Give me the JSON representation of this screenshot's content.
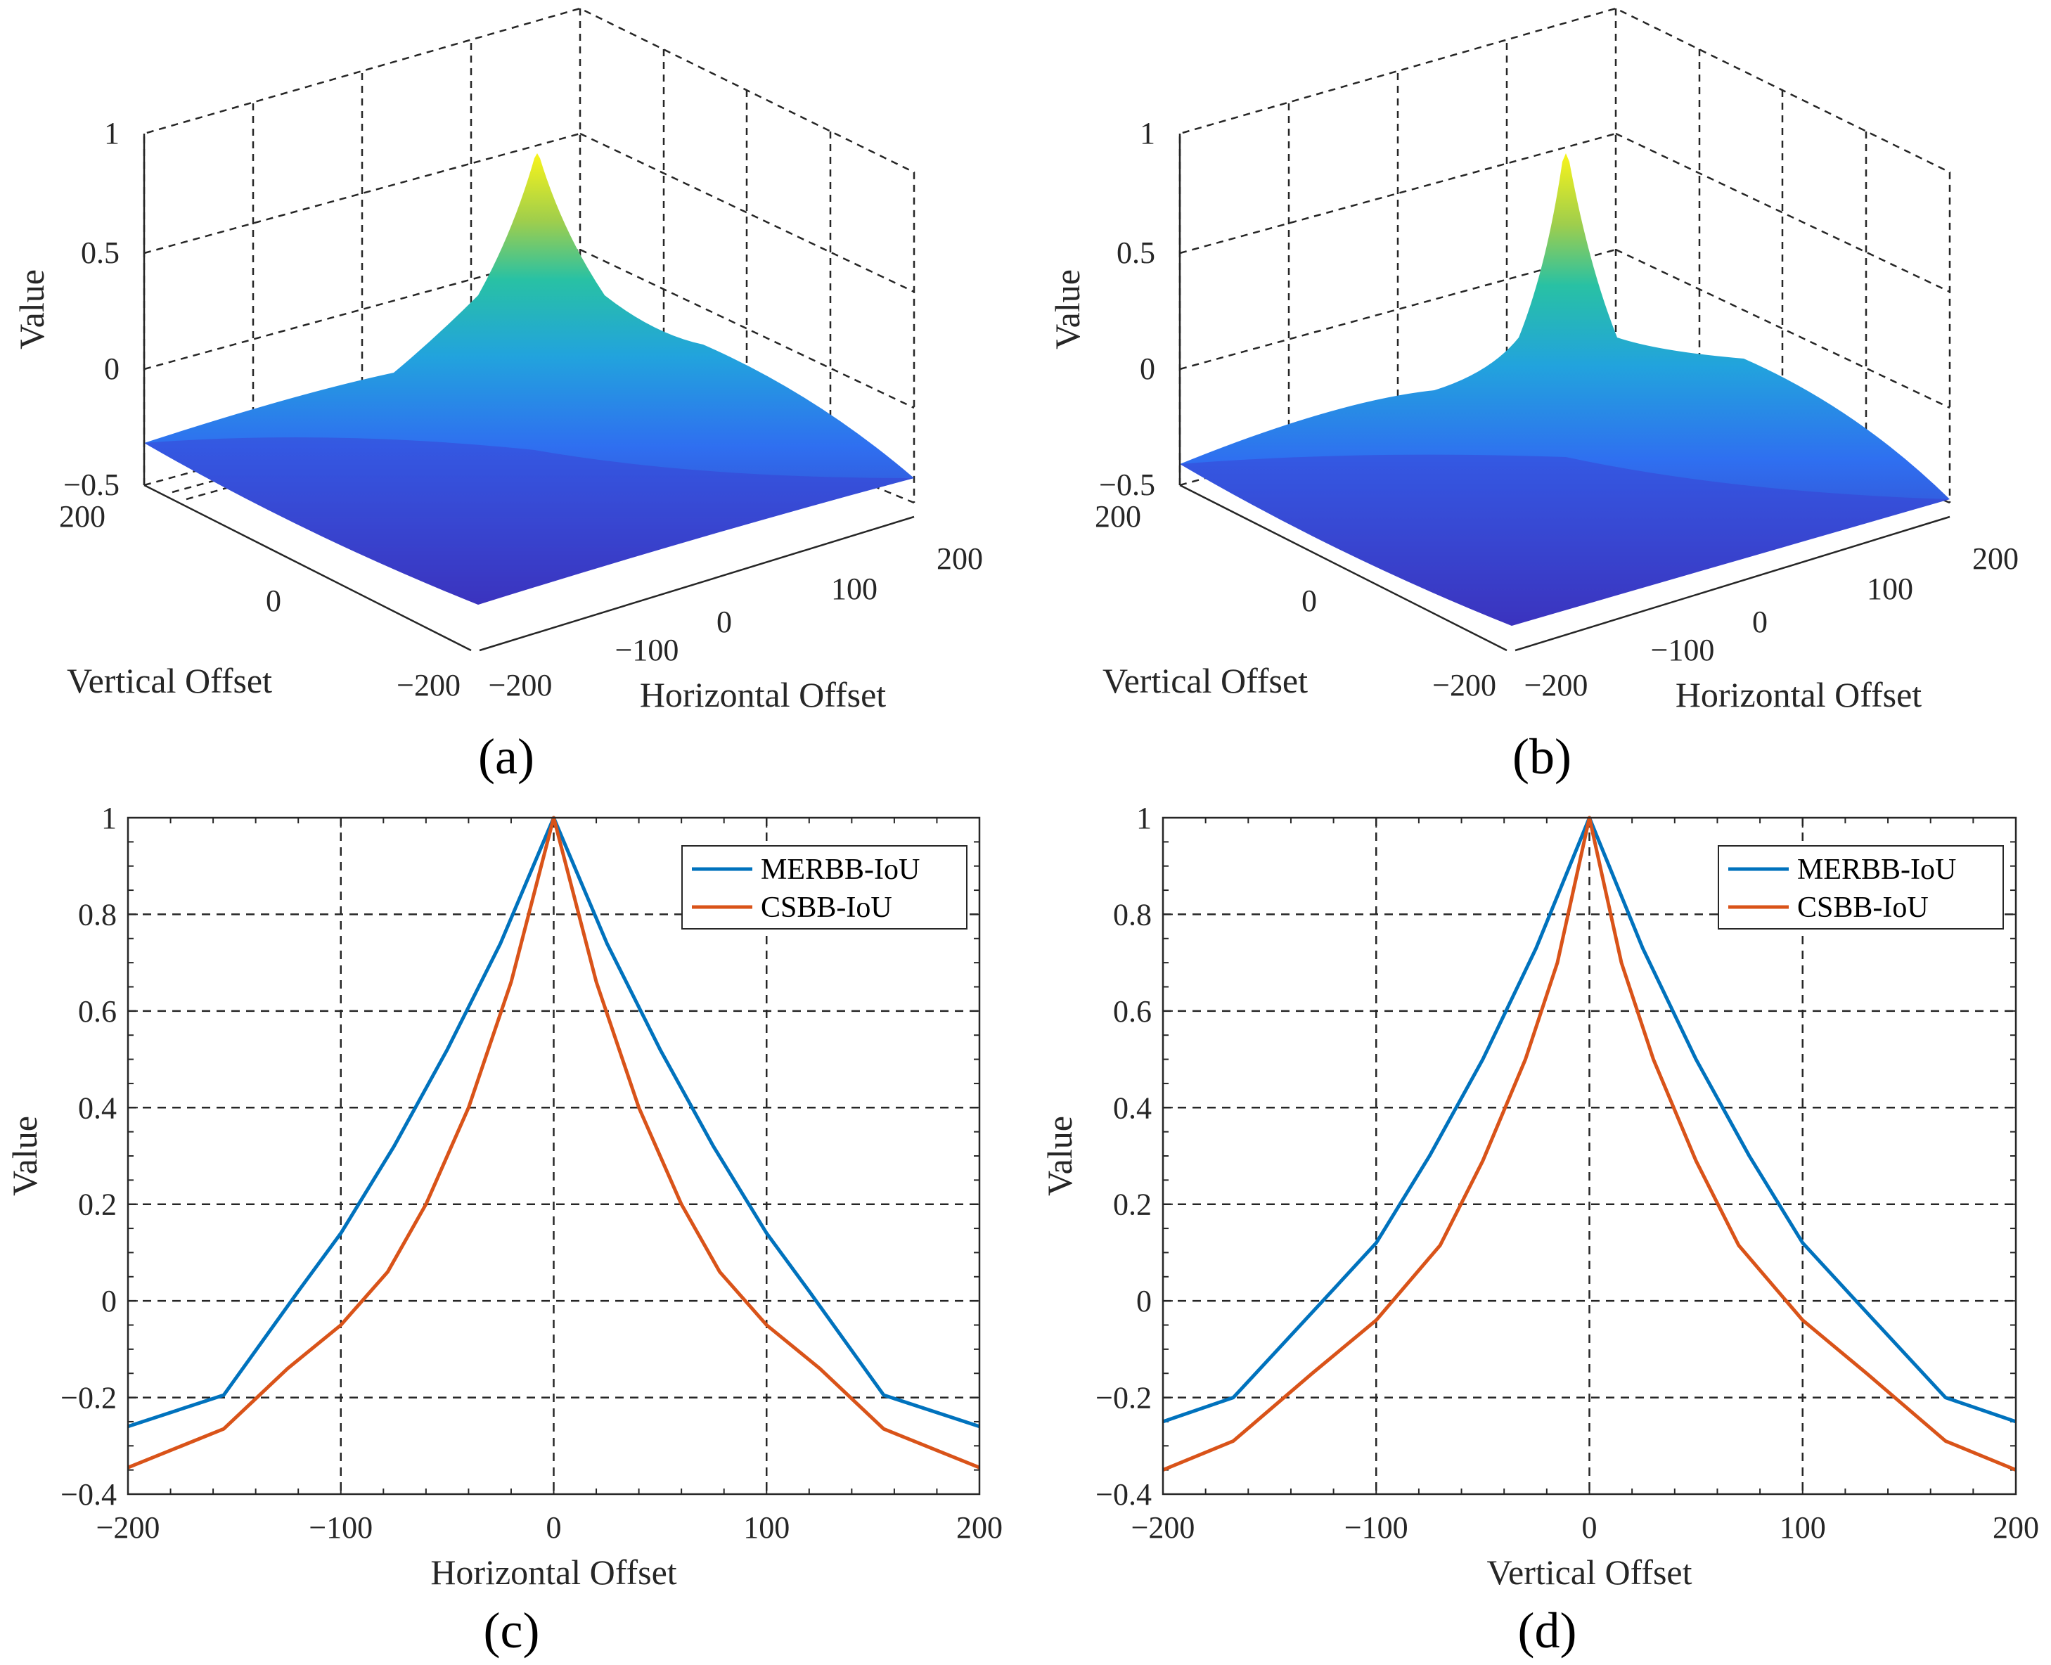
{
  "colors": {
    "merbb": "#0072BD",
    "csbb": "#D95319",
    "grid": "#262626",
    "surface_colormap": "parula"
  },
  "chart_data": [
    {
      "panel": "(a)",
      "type": "surface3d",
      "xlabel": "Horizontal Offset",
      "ylabel": "Vertical Offset",
      "zlabel": "Value",
      "xticks": [
        "−200",
        "−100",
        "0",
        "100",
        "200"
      ],
      "yticks": [
        "−200",
        "0",
        "200"
      ],
      "zticks": [
        "−0.5",
        "0",
        "0.5",
        "1"
      ],
      "xlim": [
        -200,
        200
      ],
      "ylim": [
        -200,
        200
      ],
      "zlim": [
        -0.5,
        1
      ],
      "peak_value": 1,
      "corner_value": -0.5
    },
    {
      "panel": "(b)",
      "type": "surface3d",
      "xlabel": "Horizontal Offset",
      "ylabel": "Vertical Offset",
      "zlabel": "Value",
      "xticks": [
        "−200",
        "−100",
        "0",
        "100",
        "200"
      ],
      "yticks": [
        "−200",
        "0",
        "200"
      ],
      "zticks": [
        "−0.5",
        "0",
        "0.5",
        "1"
      ],
      "xlim": [
        -200,
        200
      ],
      "ylim": [
        -200,
        200
      ],
      "zlim": [
        -0.5,
        1
      ],
      "peak_value": 1,
      "corner_value": -0.5
    },
    {
      "panel": "(c)",
      "type": "line",
      "xlabel": "Horizontal Offset",
      "ylabel": "Value",
      "xlim": [
        -200,
        200
      ],
      "ylim": [
        -0.4,
        1
      ],
      "xticks": [
        "−200",
        "−100",
        "0",
        "100",
        "200"
      ],
      "yticks": [
        "−0.4",
        "−0.2",
        "0",
        "0.2",
        "0.4",
        "0.6",
        "0.8",
        "1"
      ],
      "grid": true,
      "legend_position": "top-right",
      "series": [
        {
          "name": "MERBB-IoU",
          "x": [
            -200,
            -155,
            -120,
            -100,
            -75,
            -50,
            -25,
            0,
            25,
            50,
            75,
            100,
            120,
            155,
            200
          ],
          "y": [
            -0.26,
            -0.195,
            0.02,
            0.14,
            0.32,
            0.52,
            0.74,
            1.0,
            0.74,
            0.52,
            0.32,
            0.14,
            0.02,
            -0.195,
            -0.26
          ]
        },
        {
          "name": "CSBB-IoU",
          "x": [
            -200,
            -155,
            -125,
            -100,
            -78,
            -60,
            -40,
            -20,
            0,
            20,
            40,
            60,
            78,
            100,
            125,
            155,
            200
          ],
          "y": [
            -0.345,
            -0.265,
            -0.14,
            -0.05,
            0.06,
            0.2,
            0.4,
            0.66,
            1.0,
            0.66,
            0.4,
            0.2,
            0.06,
            -0.05,
            -0.14,
            -0.265,
            -0.345
          ]
        }
      ]
    },
    {
      "panel": "(d)",
      "type": "line",
      "xlabel": "Vertical Offset",
      "ylabel": "Value",
      "xlim": [
        -200,
        200
      ],
      "ylim": [
        -0.4,
        1
      ],
      "xticks": [
        "−200",
        "−100",
        "0",
        "100",
        "200"
      ],
      "yticks": [
        "−0.4",
        "−0.2",
        "0",
        "0.2",
        "0.4",
        "0.6",
        "0.8",
        "1"
      ],
      "grid": true,
      "legend_position": "top-right",
      "series": [
        {
          "name": "MERBB-IoU",
          "x": [
            -200,
            -167,
            -125,
            -100,
            -75,
            -50,
            -25,
            0,
            25,
            50,
            75,
            100,
            125,
            167,
            200
          ],
          "y": [
            -0.25,
            -0.2,
            0.0,
            0.12,
            0.3,
            0.5,
            0.73,
            1.0,
            0.73,
            0.5,
            0.3,
            0.12,
            0.0,
            -0.2,
            -0.25
          ]
        },
        {
          "name": "CSBB-IoU",
          "x": [
            -200,
            -167,
            -130,
            -100,
            -70,
            -50,
            -30,
            -15,
            0,
            15,
            30,
            50,
            70,
            100,
            130,
            167,
            200
          ],
          "y": [
            -0.35,
            -0.29,
            -0.15,
            -0.04,
            0.115,
            0.29,
            0.5,
            0.7,
            1.0,
            0.7,
            0.5,
            0.29,
            0.115,
            -0.04,
            -0.15,
            -0.29,
            -0.35
          ]
        }
      ]
    }
  ]
}
